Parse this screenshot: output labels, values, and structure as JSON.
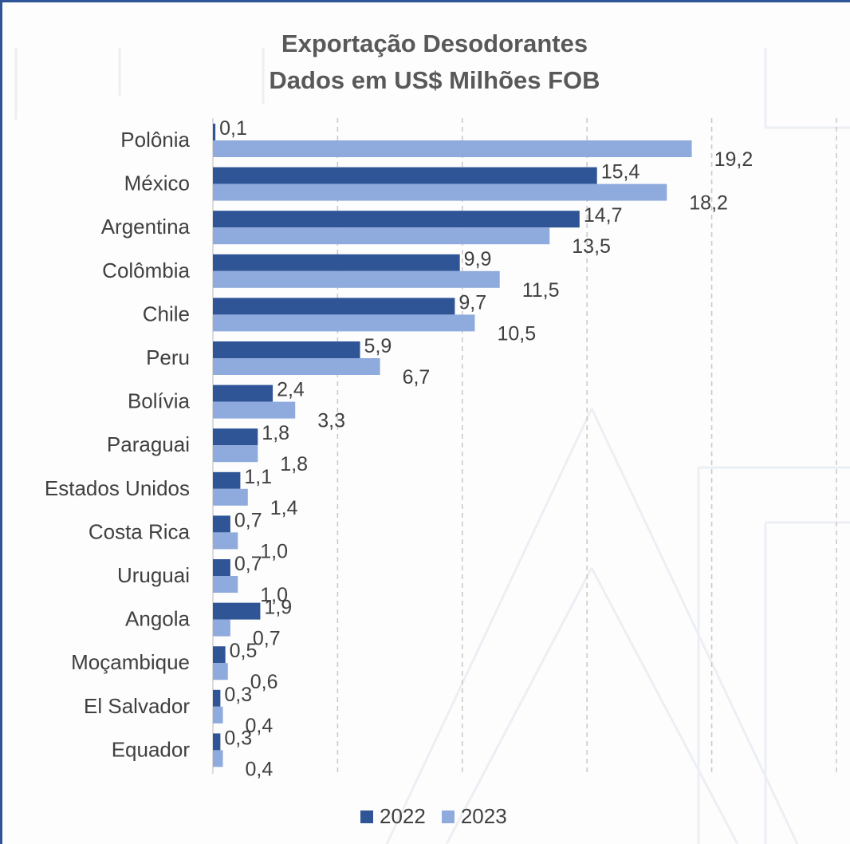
{
  "chart_data": {
    "type": "bar",
    "orientation": "horizontal",
    "title": "Exportação Desodorantes",
    "subtitle": "Dados em US$ Milhões FOB",
    "categories": [
      "Polônia",
      "México",
      "Argentina",
      "Colômbia",
      "Chile",
      "Peru",
      "Bolívia",
      "Paraguai",
      "Estados Unidos",
      "Costa Rica",
      "Uruguai",
      "Angola",
      "Moçambique",
      "El Salvador",
      "Equador"
    ],
    "series": [
      {
        "name": "2022",
        "color": "#2f5597",
        "values": [
          0.1,
          15.4,
          14.7,
          9.9,
          9.7,
          5.9,
          2.4,
          1.8,
          1.1,
          0.7,
          0.7,
          1.9,
          0.5,
          0.3,
          0.3
        ],
        "labels": [
          "0,1",
          "15,4",
          "14,7",
          "9,9",
          "9,7",
          "5,9",
          "2,4",
          "1,8",
          "1,1",
          "0,7",
          "0,7",
          "1,9",
          "0,5",
          "0,3",
          "0,3"
        ]
      },
      {
        "name": "2023",
        "color": "#8faadc",
        "values": [
          19.2,
          18.2,
          13.5,
          11.5,
          10.5,
          6.7,
          3.3,
          1.8,
          1.4,
          1.0,
          1.0,
          0.7,
          0.6,
          0.4,
          0.4
        ],
        "labels": [
          "19,2",
          "18,2",
          "13,5",
          "11,5",
          "10,5",
          "6,7",
          "3,3",
          "1,8",
          "1,4",
          "1,0",
          "1,0",
          "0,7",
          "0,6",
          "0,4",
          "0,4"
        ]
      }
    ],
    "xlim": [
      0,
      25
    ],
    "grid": true,
    "legend_position": "bottom"
  }
}
